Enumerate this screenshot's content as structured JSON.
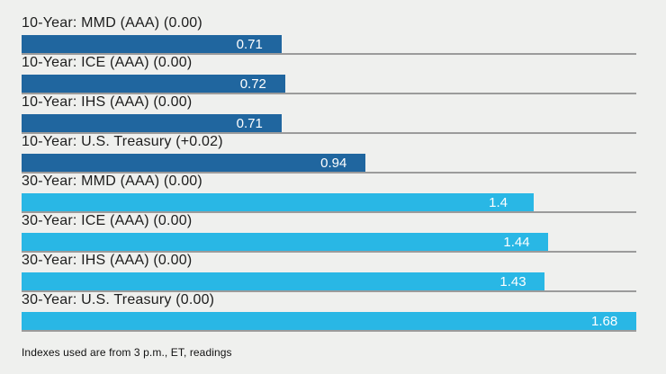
{
  "colors": {
    "background": "#eff0ee",
    "bar_10_year": "#20669f",
    "bar_30_year": "#29b7e5",
    "track_line": "#9b9b9b",
    "category_text": "#1d1d1d",
    "value_text": "#ffffff",
    "footnote_text": "#111111"
  },
  "footnote": "Indexes used are from 3 p.m., ET, readings",
  "chart_data": {
    "type": "bar",
    "orientation": "horizontal",
    "title": "",
    "xlabel": "",
    "ylabel": "",
    "xlim": [
      0,
      1.68
    ],
    "grid": false,
    "legend": false,
    "value_labels_inside_bar": true,
    "categories": [
      "10-Year: MMD (AAA) (0.00)",
      "10-Year: ICE (AAA) (0.00)",
      "10-Year: IHS (AAA) (0.00)",
      "10-Year: U.S. Treasury (+0.02)",
      "30-Year: MMD (AAA) (0.00)",
      "30-Year: ICE (AAA) (0.00)",
      "30-Year: IHS (AAA) (0.00)",
      "30-Year: U.S. Treasury (0.00)"
    ],
    "values": [
      0.71,
      0.72,
      0.71,
      0.94,
      1.4,
      1.44,
      1.43,
      1.68
    ],
    "bars": [
      {
        "label": "10-Year: MMD (AAA) (0.00)",
        "value": 0.71,
        "value_label": "0.71",
        "group": "10-year"
      },
      {
        "label": "10-Year: ICE (AAA) (0.00)",
        "value": 0.72,
        "value_label": "0.72",
        "group": "10-year"
      },
      {
        "label": "10-Year: IHS (AAA) (0.00)",
        "value": 0.71,
        "value_label": "0.71",
        "group": "10-year"
      },
      {
        "label": "10-Year: U.S. Treasury (+0.02)",
        "value": 0.94,
        "value_label": "0.94",
        "group": "10-year"
      },
      {
        "label": "30-Year: MMD (AAA) (0.00)",
        "value": 1.4,
        "value_label": "1.4",
        "group": "30-year"
      },
      {
        "label": "30-Year: ICE (AAA) (0.00)",
        "value": 1.44,
        "value_label": "1.44",
        "group": "30-year"
      },
      {
        "label": "30-Year: IHS (AAA) (0.00)",
        "value": 1.43,
        "value_label": "1.43",
        "group": "30-year"
      },
      {
        "label": "30-Year: U.S. Treasury (0.00)",
        "value": 1.68,
        "value_label": "1.68",
        "group": "30-year"
      }
    ],
    "footnote": "Indexes used are from 3 p.m., ET, readings"
  }
}
